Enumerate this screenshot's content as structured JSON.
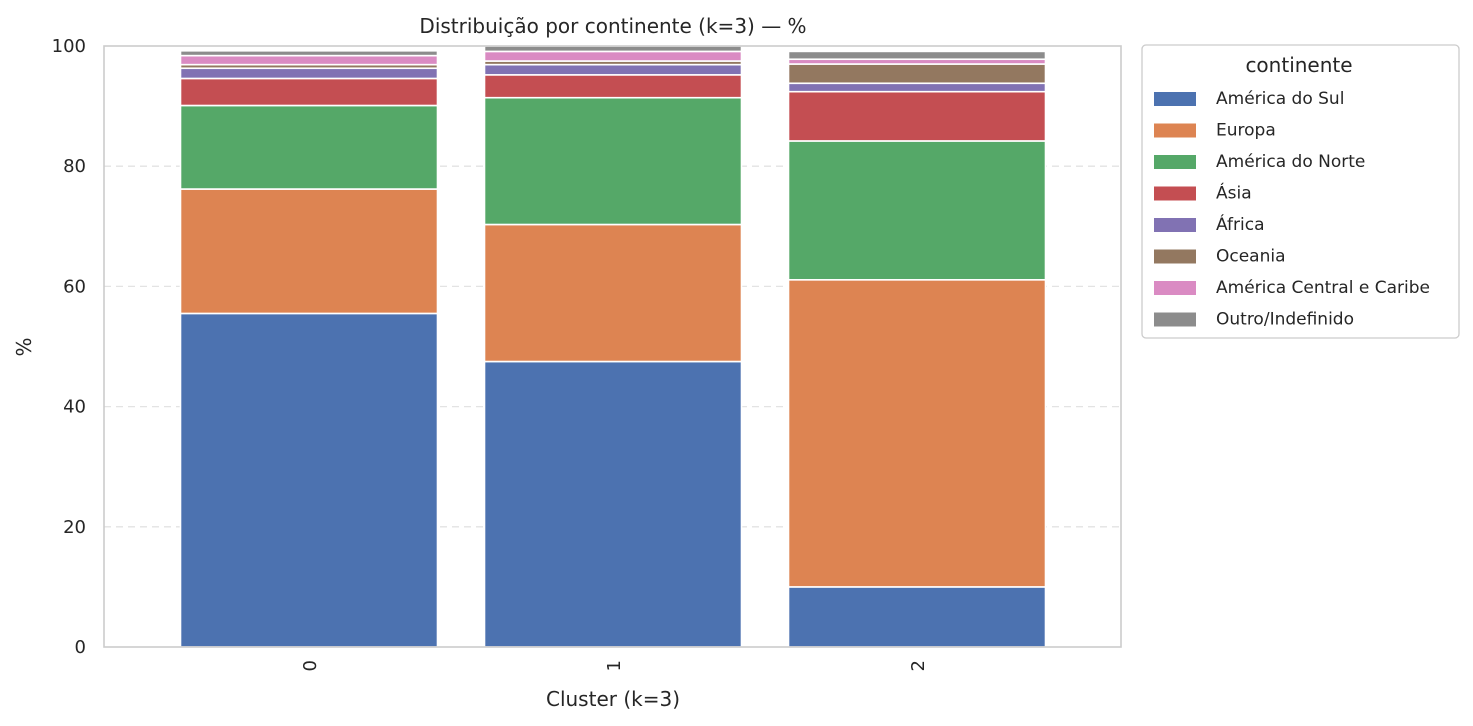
{
  "chart_data": {
    "type": "bar",
    "stacked": true,
    "title": "Distribuição por continente (k=3) — %",
    "xlabel": "Cluster (k=3)",
    "ylabel": "%",
    "categories": [
      "0",
      "1",
      "2"
    ],
    "ylim": [
      0,
      100
    ],
    "yticks": [
      "0",
      "20",
      "40",
      "60",
      "80",
      "100"
    ],
    "grid": "horizontal dashed",
    "legend": {
      "title": "continente",
      "placement": "outside top-right"
    },
    "series": [
      {
        "name": "América do Sul",
        "color": "#4c72b0",
        "values": [
          55.5,
          47.5,
          10.0
        ]
      },
      {
        "name": "Europa",
        "color": "#dd8452",
        "values": [
          20.7,
          22.8,
          51.1
        ]
      },
      {
        "name": "América do Norte",
        "color": "#55a868",
        "values": [
          13.9,
          21.1,
          23.1
        ]
      },
      {
        "name": "Ásia",
        "color": "#c44e52",
        "values": [
          4.5,
          3.8,
          8.2
        ]
      },
      {
        "name": "África",
        "color": "#8172b3",
        "values": [
          1.7,
          1.7,
          1.4
        ]
      },
      {
        "name": "Oceania",
        "color": "#937860",
        "values": [
          0.6,
          0.6,
          3.2
        ]
      },
      {
        "name": "América Central e Caribe",
        "color": "#da8bc3",
        "values": [
          1.5,
          1.6,
          0.8
        ]
      },
      {
        "name": "Outro/Indefinido",
        "color": "#8c8c8c",
        "values": [
          0.8,
          0.9,
          1.3
        ]
      }
    ]
  }
}
